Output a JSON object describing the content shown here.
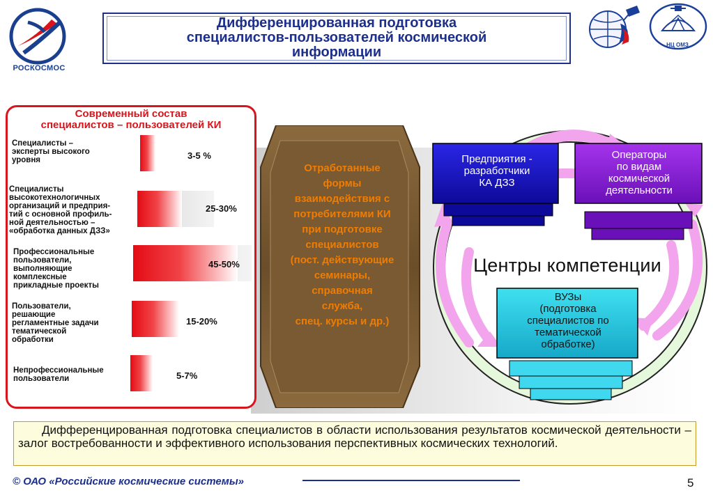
{
  "header": {
    "title": "Дифференцированная подготовка\nспециалистов-пользователей космической\nинформации",
    "logo_left_text": "РОСКОСМОС",
    "logo_right_text": "НЦ ОМЗ"
  },
  "left_panel": {
    "title": "Современный состав\nспециалистов – пользователей КИ",
    "rows": [
      {
        "label": "Специалисты –\nэксперты высокого\nуровня",
        "value": "3-5 %"
      },
      {
        "label": "Специалисты\nвысокотехнологичных\nорганизаций и предприя-\nтий с основной профиль-\nной деятельностью –\n«обработка данных ДЗЗ»",
        "value": "25-30%"
      },
      {
        "label": "Профессиональные\nпользователи,\nвыполняющие\nкомплексные\nприкладные проекты",
        "value": "45-50%"
      },
      {
        "label": "Пользователи,\nрешающие\nрегламентные задачи\nтематической\nобработки",
        "value": "15-20%"
      },
      {
        "label": "Непрофессиональные\nпользователи",
        "value": "5-7%"
      }
    ]
  },
  "middle_panel": {
    "text": "Отработанные\nформы\nвзаимодействия с\nпотребителями КИ\nпри подготовке\nспециалистов\n(пост. действующие\nсеминары,\nсправочная\nслужба,\nспец. курсы  и др.)"
  },
  "circle": {
    "center_label": "Центры компетенции",
    "boxes": [
      {
        "label": "Предприятия -\nразработчики\nКА ДЗЗ",
        "color": "#1a16c9"
      },
      {
        "label": "Операторы\nпо видам\nкосмической\nдеятельности",
        "color": "#8b1fd6"
      },
      {
        "label": "ВУЗы\n(подготовка\nспециалистов по\nтематической\nобработке)",
        "color": "#27c7dc"
      }
    ],
    "ring_color": "#d9f5d0",
    "arrow_color": "#f2a4ec"
  },
  "bottom_text": "Дифференцированная подготовка специалистов в области использования результатов космической деятельности – залог востребованности и эффективного использования перспективных космических технологий.",
  "footer": {
    "copyright": "©  ОАО «Российские космические системы»",
    "page_number": "5"
  }
}
